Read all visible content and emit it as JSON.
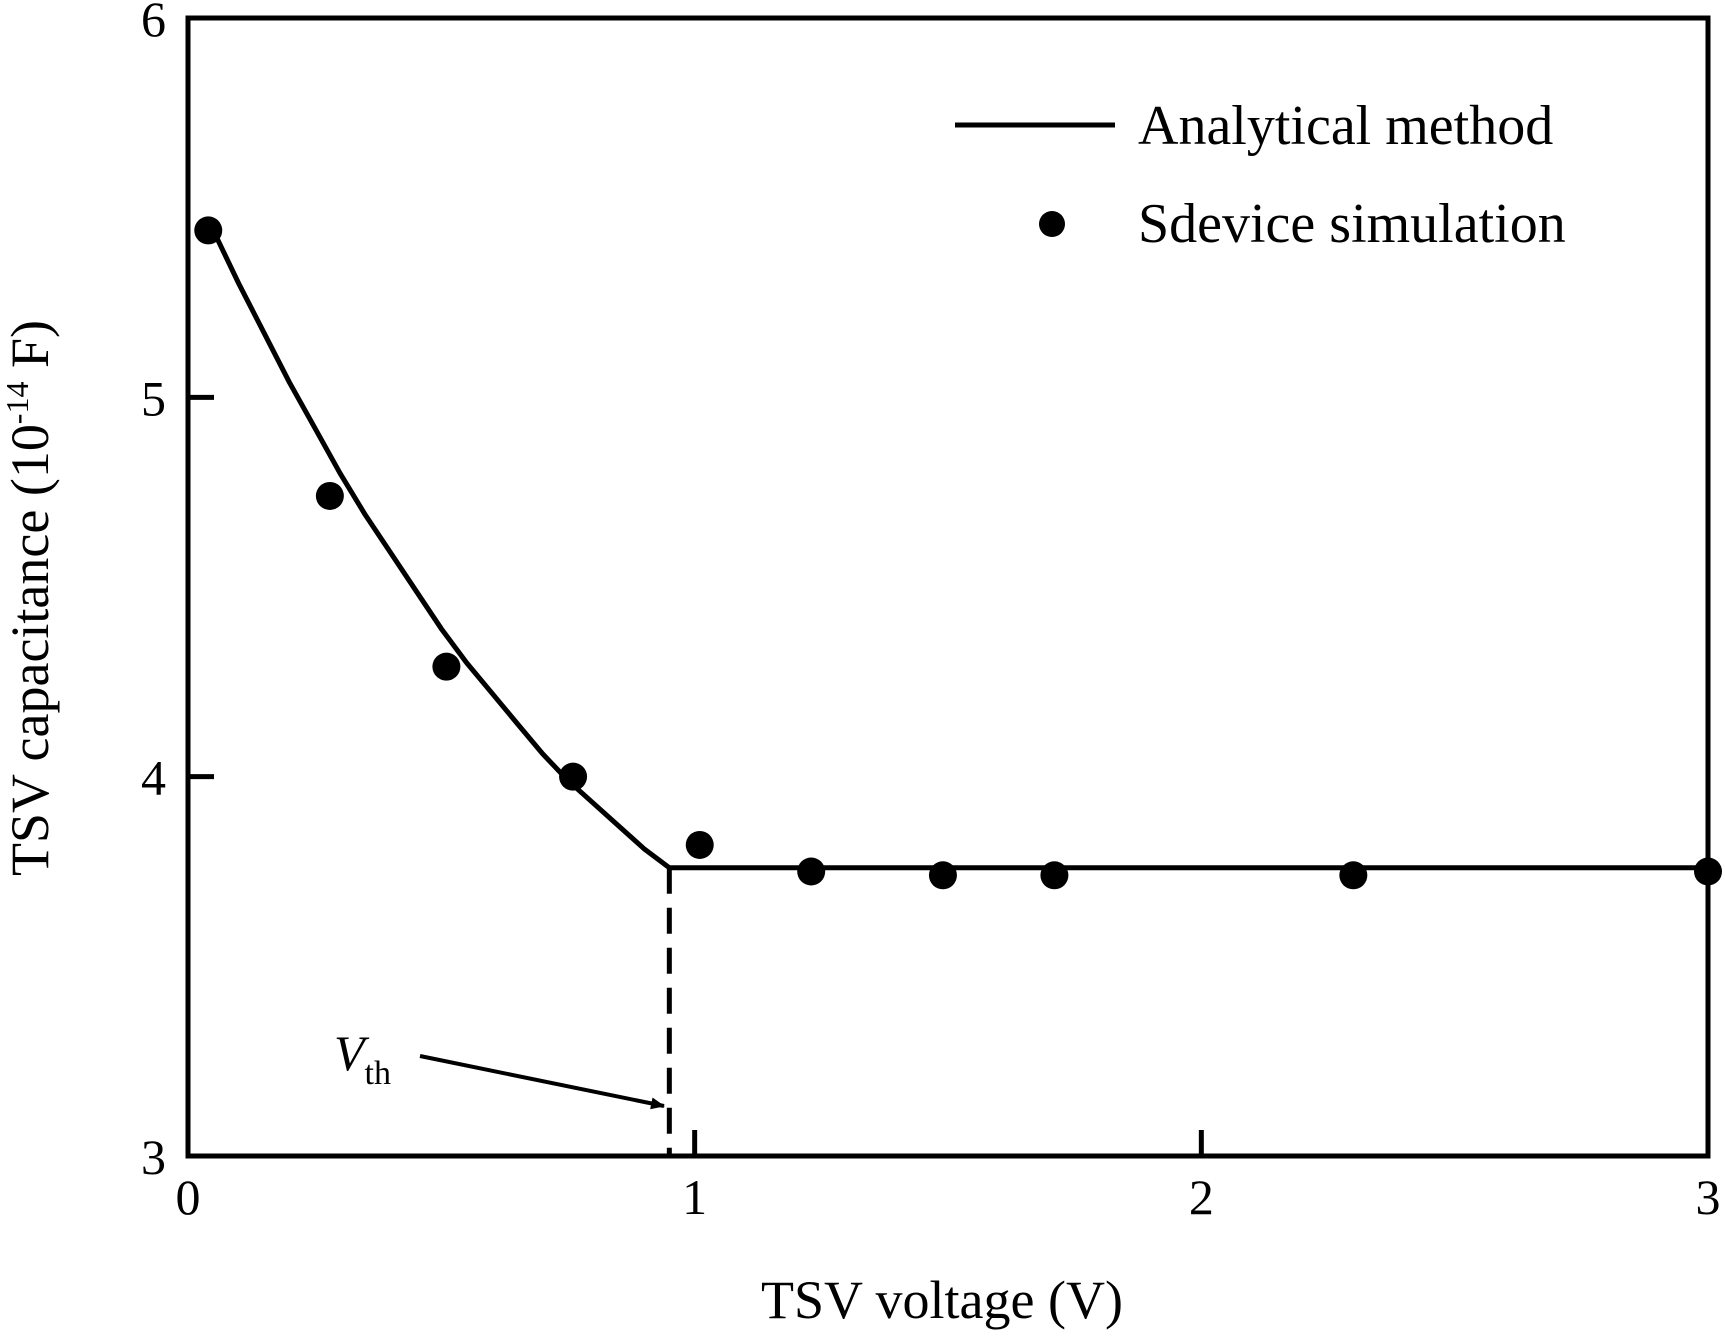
{
  "chart_data": {
    "type": "line",
    "xlabel": "TSV voltage (V)",
    "ylabel": {
      "main": "TSV capacitance (10",
      "sup": "-14",
      "end": " F)"
    },
    "xlim": [
      0,
      3
    ],
    "ylim": [
      3,
      6
    ],
    "xticks": [
      0,
      1,
      2,
      3
    ],
    "xtick_labels": [
      "0",
      "1",
      "2",
      "3"
    ],
    "yticks": [
      3,
      4,
      5,
      6
    ],
    "ytick_labels": [
      "3",
      "4",
      "5",
      "6"
    ],
    "grid": false,
    "legend_position": "top-right",
    "series": [
      {
        "name": "Analytical method",
        "style": "line",
        "x": [
          0.05,
          0.1,
          0.15,
          0.2,
          0.25,
          0.3,
          0.35,
          0.4,
          0.45,
          0.5,
          0.55,
          0.6,
          0.65,
          0.7,
          0.75,
          0.8,
          0.85,
          0.9,
          0.95,
          1.0,
          1.5,
          2.0,
          2.5,
          3.0
        ],
        "y": [
          5.44,
          5.3,
          5.17,
          5.04,
          4.92,
          4.8,
          4.69,
          4.59,
          4.49,
          4.39,
          4.3,
          4.22,
          4.14,
          4.06,
          3.99,
          3.93,
          3.87,
          3.81,
          3.76,
          3.76,
          3.76,
          3.76,
          3.76,
          3.76
        ]
      },
      {
        "name": "Sdevice simulation",
        "style": "marker",
        "x": [
          0.04,
          0.28,
          0.51,
          0.76,
          1.01,
          1.23,
          1.49,
          1.71,
          2.3,
          3.0
        ],
        "y": [
          5.44,
          4.74,
          4.29,
          4.0,
          3.82,
          3.75,
          3.74,
          3.74,
          3.74,
          3.75
        ]
      }
    ],
    "threshold": {
      "x": 0.95,
      "label_main": "V",
      "label_sub": "th"
    },
    "colors": {
      "line": "#000000",
      "marker": "#000000",
      "background": "#ffffff"
    }
  }
}
